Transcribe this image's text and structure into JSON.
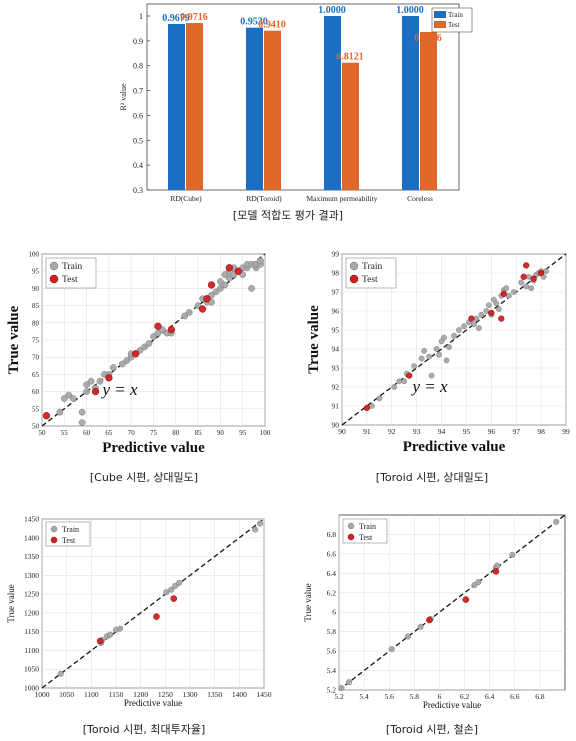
{
  "captions": {
    "bar": "[모델 적합도 평가 결과]",
    "cube": "[Cube 시편, 상대밀도]",
    "toroid_density": "[Toroid 시편, 상대밀도]",
    "toroid_perm": "[Toroid 시편, 최대투자율]",
    "toroid_loss": "[Toroid 시편, 철손]"
  },
  "colors": {
    "train_bar": "#1a6fc4",
    "test_bar": "#e0662a",
    "train_point": "#a8a8a8",
    "test_point": "#d42020"
  },
  "chart_data": [
    {
      "type": "bar",
      "categories": [
        "RD(Cube)",
        "RD(Toroid)",
        "Maximum permeability",
        "Coreless"
      ],
      "series": [
        {
          "name": "Train",
          "values": [
            0.9679,
            0.953,
            1.0,
            1.0
          ],
          "labels": [
            "0.9679",
            "0.9530",
            "1.0000",
            "1.0000"
          ]
        },
        {
          "name": "Test",
          "values": [
            0.9716,
            0.941,
            0.8121,
            0.9356
          ],
          "labels": [
            "0.9716",
            "0.9410",
            "0.8121",
            "0.9356"
          ]
        }
      ],
      "ylabel": "R² value",
      "ylim": [
        0.3,
        1.0
      ],
      "yticks": [
        "0.3",
        "0.4",
        "0.5",
        "0.6",
        "0.7",
        "0.8",
        "0.9",
        "1"
      ],
      "legend": "top-right"
    },
    {
      "type": "scatter",
      "xlabel": "Predictive value",
      "ylabel": "True value",
      "xlim": [
        50,
        100
      ],
      "ylim": [
        50,
        100
      ],
      "xticks": [
        "50",
        "55",
        "60",
        "65",
        "70",
        "75",
        "80",
        "85",
        "90",
        "95",
        "100"
      ],
      "yticks": [
        "50",
        "55",
        "60",
        "65",
        "70",
        "75",
        "80",
        "85",
        "90",
        "95",
        "100"
      ],
      "annotation": "y = x",
      "legend": "top-left",
      "series": [
        {
          "name": "Train",
          "points": [
            [
              54,
              54
            ],
            [
              55,
              58
            ],
            [
              56,
              59
            ],
            [
              57,
              58
            ],
            [
              59,
              51
            ],
            [
              59,
              54
            ],
            [
              60,
              60
            ],
            [
              60,
              62
            ],
            [
              61,
              63
            ],
            [
              62,
              61
            ],
            [
              63,
              63
            ],
            [
              64,
              65
            ],
            [
              65,
              65
            ],
            [
              66,
              67
            ],
            [
              68,
              68
            ],
            [
              69,
              69
            ],
            [
              70,
              70
            ],
            [
              70,
              71
            ],
            [
              71,
              71
            ],
            [
              72,
              72
            ],
            [
              73,
              73
            ],
            [
              74,
              74
            ],
            [
              75,
              76
            ],
            [
              76,
              77
            ],
            [
              77,
              78
            ],
            [
              78,
              77
            ],
            [
              79,
              77
            ],
            [
              82,
              82
            ],
            [
              83,
              83
            ],
            [
              85,
              85
            ],
            [
              86,
              87
            ],
            [
              87,
              86
            ],
            [
              88,
              88
            ],
            [
              89,
              89
            ],
            [
              90,
              90
            ],
            [
              90,
              92
            ],
            [
              91,
              91
            ],
            [
              91,
              94
            ],
            [
              92,
              93
            ],
            [
              93,
              94
            ],
            [
              94,
              95
            ],
            [
              95,
              96
            ],
            [
              95,
              94
            ],
            [
              96,
              96
            ],
            [
              96,
              97
            ],
            [
              97,
              97
            ],
            [
              97,
              90
            ],
            [
              98,
              96
            ],
            [
              98,
              97
            ],
            [
              99,
              97
            ],
            [
              99,
              98
            ],
            [
              88,
              86
            ],
            [
              92,
              95
            ],
            [
              93,
              96
            ]
          ]
        },
        {
          "name": "Test",
          "points": [
            [
              51,
              53
            ],
            [
              62,
              60
            ],
            [
              65,
              64
            ],
            [
              71,
              71
            ],
            [
              76,
              79
            ],
            [
              79,
              78
            ],
            [
              86,
              84
            ],
            [
              87,
              87
            ],
            [
              88,
              91
            ],
            [
              92,
              96
            ],
            [
              94,
              95
            ]
          ]
        }
      ]
    },
    {
      "type": "scatter",
      "xlabel": "Predictive value",
      "ylabel": "True value",
      "xlim": [
        90,
        99
      ],
      "ylim": [
        90,
        99
      ],
      "xticks": [
        "90",
        "91",
        "92",
        "93",
        "94",
        "95",
        "96",
        "97",
        "98",
        "99"
      ],
      "yticks": [
        "90",
        "91",
        "92",
        "93",
        "94",
        "95",
        "96",
        "97",
        "98",
        "99"
      ],
      "annotation": "y = x",
      "legend": "top-left",
      "series": [
        {
          "name": "Train",
          "points": [
            [
              91.2,
              91.0
            ],
            [
              91.5,
              91.4
            ],
            [
              92.1,
              92.0
            ],
            [
              92.3,
              92.3
            ],
            [
              92.6,
              92.7
            ],
            [
              92.9,
              93.1
            ],
            [
              93.2,
              93.5
            ],
            [
              93.3,
              93.9
            ],
            [
              93.5,
              93.6
            ],
            [
              93.6,
              92.6
            ],
            [
              93.8,
              94.0
            ],
            [
              93.9,
              93.7
            ],
            [
              94.0,
              94.4
            ],
            [
              94.1,
              94.6
            ],
            [
              94.3,
              94.1
            ],
            [
              94.5,
              94.7
            ],
            [
              94.7,
              95.0
            ],
            [
              94.9,
              95.2
            ],
            [
              95.1,
              95.4
            ],
            [
              95.3,
              95.3
            ],
            [
              95.4,
              95.6
            ],
            [
              95.5,
              95.1
            ],
            [
              95.6,
              95.8
            ],
            [
              95.8,
              96.0
            ],
            [
              95.9,
              96.3
            ],
            [
              96.0,
              95.8
            ],
            [
              96.1,
              96.6
            ],
            [
              96.2,
              96.4
            ],
            [
              96.3,
              96.1
            ],
            [
              96.4,
              96.8
            ],
            [
              96.5,
              97.1
            ],
            [
              96.6,
              97.2
            ],
            [
              96.7,
              96.8
            ],
            [
              96.9,
              97.0
            ],
            [
              97.2,
              97.5
            ],
            [
              97.4,
              97.3
            ],
            [
              97.5,
              97.8
            ],
            [
              97.6,
              97.2
            ],
            [
              97.7,
              97.6
            ],
            [
              97.8,
              97.9
            ],
            [
              97.9,
              98.0
            ],
            [
              98.0,
              98.1
            ],
            [
              98.1,
              97.8
            ],
            [
              98.2,
              98.1
            ],
            [
              92.5,
              92.3
            ],
            [
              94.2,
              93.4
            ]
          ]
        },
        {
          "name": "Test",
          "points": [
            [
              91.0,
              90.9
            ],
            [
              92.7,
              92.6
            ],
            [
              95.2,
              95.6
            ],
            [
              96.0,
              95.9
            ],
            [
              96.4,
              95.6
            ],
            [
              96.5,
              96.9
            ],
            [
              97.3,
              97.8
            ],
            [
              97.4,
              98.4
            ],
            [
              97.7,
              97.7
            ],
            [
              98.0,
              98.0
            ]
          ]
        }
      ]
    },
    {
      "type": "scatter",
      "xlabel": "Predictive value",
      "ylabel": "True value",
      "xlim": [
        1000,
        1450
      ],
      "ylim": [
        1000,
        1450
      ],
      "xticks": [
        "1000",
        "1050",
        "1100",
        "1150",
        "1200",
        "1250",
        "1300",
        "1350",
        "1400",
        "1450"
      ],
      "yticks": [
        "1000",
        "1050",
        "1100",
        "1150",
        "1200",
        "1250",
        "1300",
        "1350",
        "1400",
        "1450"
      ],
      "legend": "top-left",
      "series": [
        {
          "name": "Train",
          "points": [
            [
              1038,
              1038
            ],
            [
              1120,
              1120
            ],
            [
              1122,
              1128
            ],
            [
              1132,
              1138
            ],
            [
              1138,
              1142
            ],
            [
              1150,
              1155
            ],
            [
              1158,
              1158
            ],
            [
              1252,
              1255
            ],
            [
              1262,
              1262
            ],
            [
              1270,
              1272
            ],
            [
              1278,
              1280
            ],
            [
              1432,
              1422
            ],
            [
              1442,
              1438
            ]
          ]
        },
        {
          "name": "Test",
          "points": [
            [
              1118,
              1125
            ],
            [
              1232,
              1190
            ],
            [
              1267,
              1238
            ]
          ]
        }
      ]
    },
    {
      "type": "scatter",
      "xlabel": "Predictive value",
      "ylabel": "True value",
      "xlim": [
        5.2,
        7.0
      ],
      "ylim": [
        5.2,
        7.0
      ],
      "xticks": [
        "5.2",
        "5.4",
        "5.6",
        "5.8",
        "6",
        "6.2",
        "6.4",
        "6.6",
        "6.8"
      ],
      "yticks": [
        "5.2",
        "5.4",
        "5.6",
        "5.8",
        "6",
        "6.2",
        "6.4",
        "6.6",
        "6.8"
      ],
      "legend": "top-left",
      "series": [
        {
          "name": "Train",
          "points": [
            [
              5.22,
              5.22
            ],
            [
              5.28,
              5.28
            ],
            [
              5.62,
              5.62
            ],
            [
              5.75,
              5.75
            ],
            [
              5.85,
              5.85
            ],
            [
              5.93,
              5.93
            ],
            [
              6.28,
              6.28
            ],
            [
              6.31,
              6.31
            ],
            [
              6.45,
              6.46
            ],
            [
              6.46,
              6.48
            ],
            [
              6.58,
              6.59
            ],
            [
              6.93,
              6.93
            ]
          ]
        },
        {
          "name": "Test",
          "points": [
            [
              5.92,
              5.92
            ],
            [
              6.21,
              6.13
            ],
            [
              6.45,
              6.42
            ]
          ]
        }
      ]
    }
  ]
}
